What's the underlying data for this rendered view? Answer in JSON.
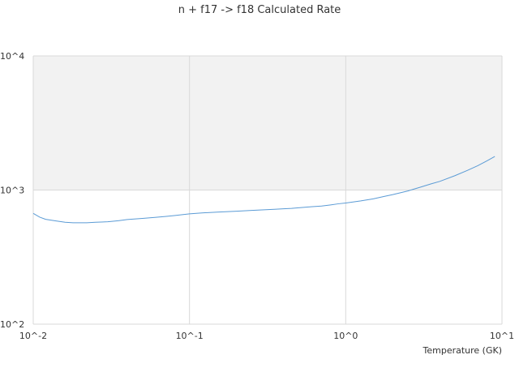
{
  "chart_data": {
    "type": "line",
    "title": "n + f17 -> f18 Calculated Rate",
    "xlabel": "Temperature (GK)",
    "ylabel": "",
    "x_scale": "log",
    "y_scale": "log",
    "xlim": [
      0.01,
      10
    ],
    "ylim": [
      100,
      10000
    ],
    "x_ticks": [
      {
        "value": 0.01,
        "label": "10^-2"
      },
      {
        "value": 0.1,
        "label": "10^-1"
      },
      {
        "value": 1,
        "label": "10^0"
      },
      {
        "value": 10,
        "label": "10^1"
      }
    ],
    "y_ticks": [
      {
        "value": 100,
        "label": "10^2"
      },
      {
        "value": 1000,
        "label": "10^3"
      },
      {
        "value": 10000,
        "label": "10^4"
      }
    ],
    "grid": true,
    "band": {
      "from": 1000,
      "to": 10000,
      "color": "#f2f2f2"
    },
    "line_color": "#5b9bd5",
    "series": [
      {
        "name": "",
        "x": [
          0.01,
          0.011,
          0.012,
          0.014,
          0.016,
          0.018,
          0.02,
          0.022,
          0.025,
          0.03,
          0.035,
          0.04,
          0.05,
          0.06,
          0.07,
          0.08,
          0.09,
          0.1,
          0.12,
          0.15,
          0.2,
          0.25,
          0.3,
          0.35,
          0.4,
          0.45,
          0.5,
          0.6,
          0.7,
          0.8,
          0.9,
          1.0,
          1.25,
          1.5,
          1.75,
          2.0,
          2.5,
          3.0,
          3.5,
          4.0,
          5.0,
          6.0,
          7.0,
          8.0,
          9.0
        ],
        "y": [
          670,
          628,
          605,
          588,
          575,
          570,
          570,
          570,
          575,
          580,
          590,
          603,
          615,
          625,
          635,
          645,
          655,
          665,
          675,
          685,
          695,
          705,
          712,
          718,
          725,
          730,
          738,
          750,
          760,
          775,
          790,
          800,
          830,
          860,
          895,
          925,
          985,
          1050,
          1110,
          1160,
          1280,
          1400,
          1520,
          1650,
          1780
        ]
      }
    ]
  }
}
